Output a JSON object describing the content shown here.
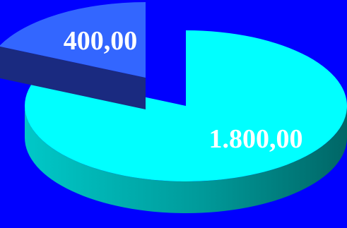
{
  "chart_data": {
    "type": "pie",
    "title": "",
    "slices": [
      {
        "value": 1800,
        "label": "1.800,00",
        "color": "#00ffff"
      },
      {
        "value": 400,
        "label": "400,00",
        "color": "#3366ff"
      }
    ],
    "three_d": true,
    "legend": "none"
  }
}
